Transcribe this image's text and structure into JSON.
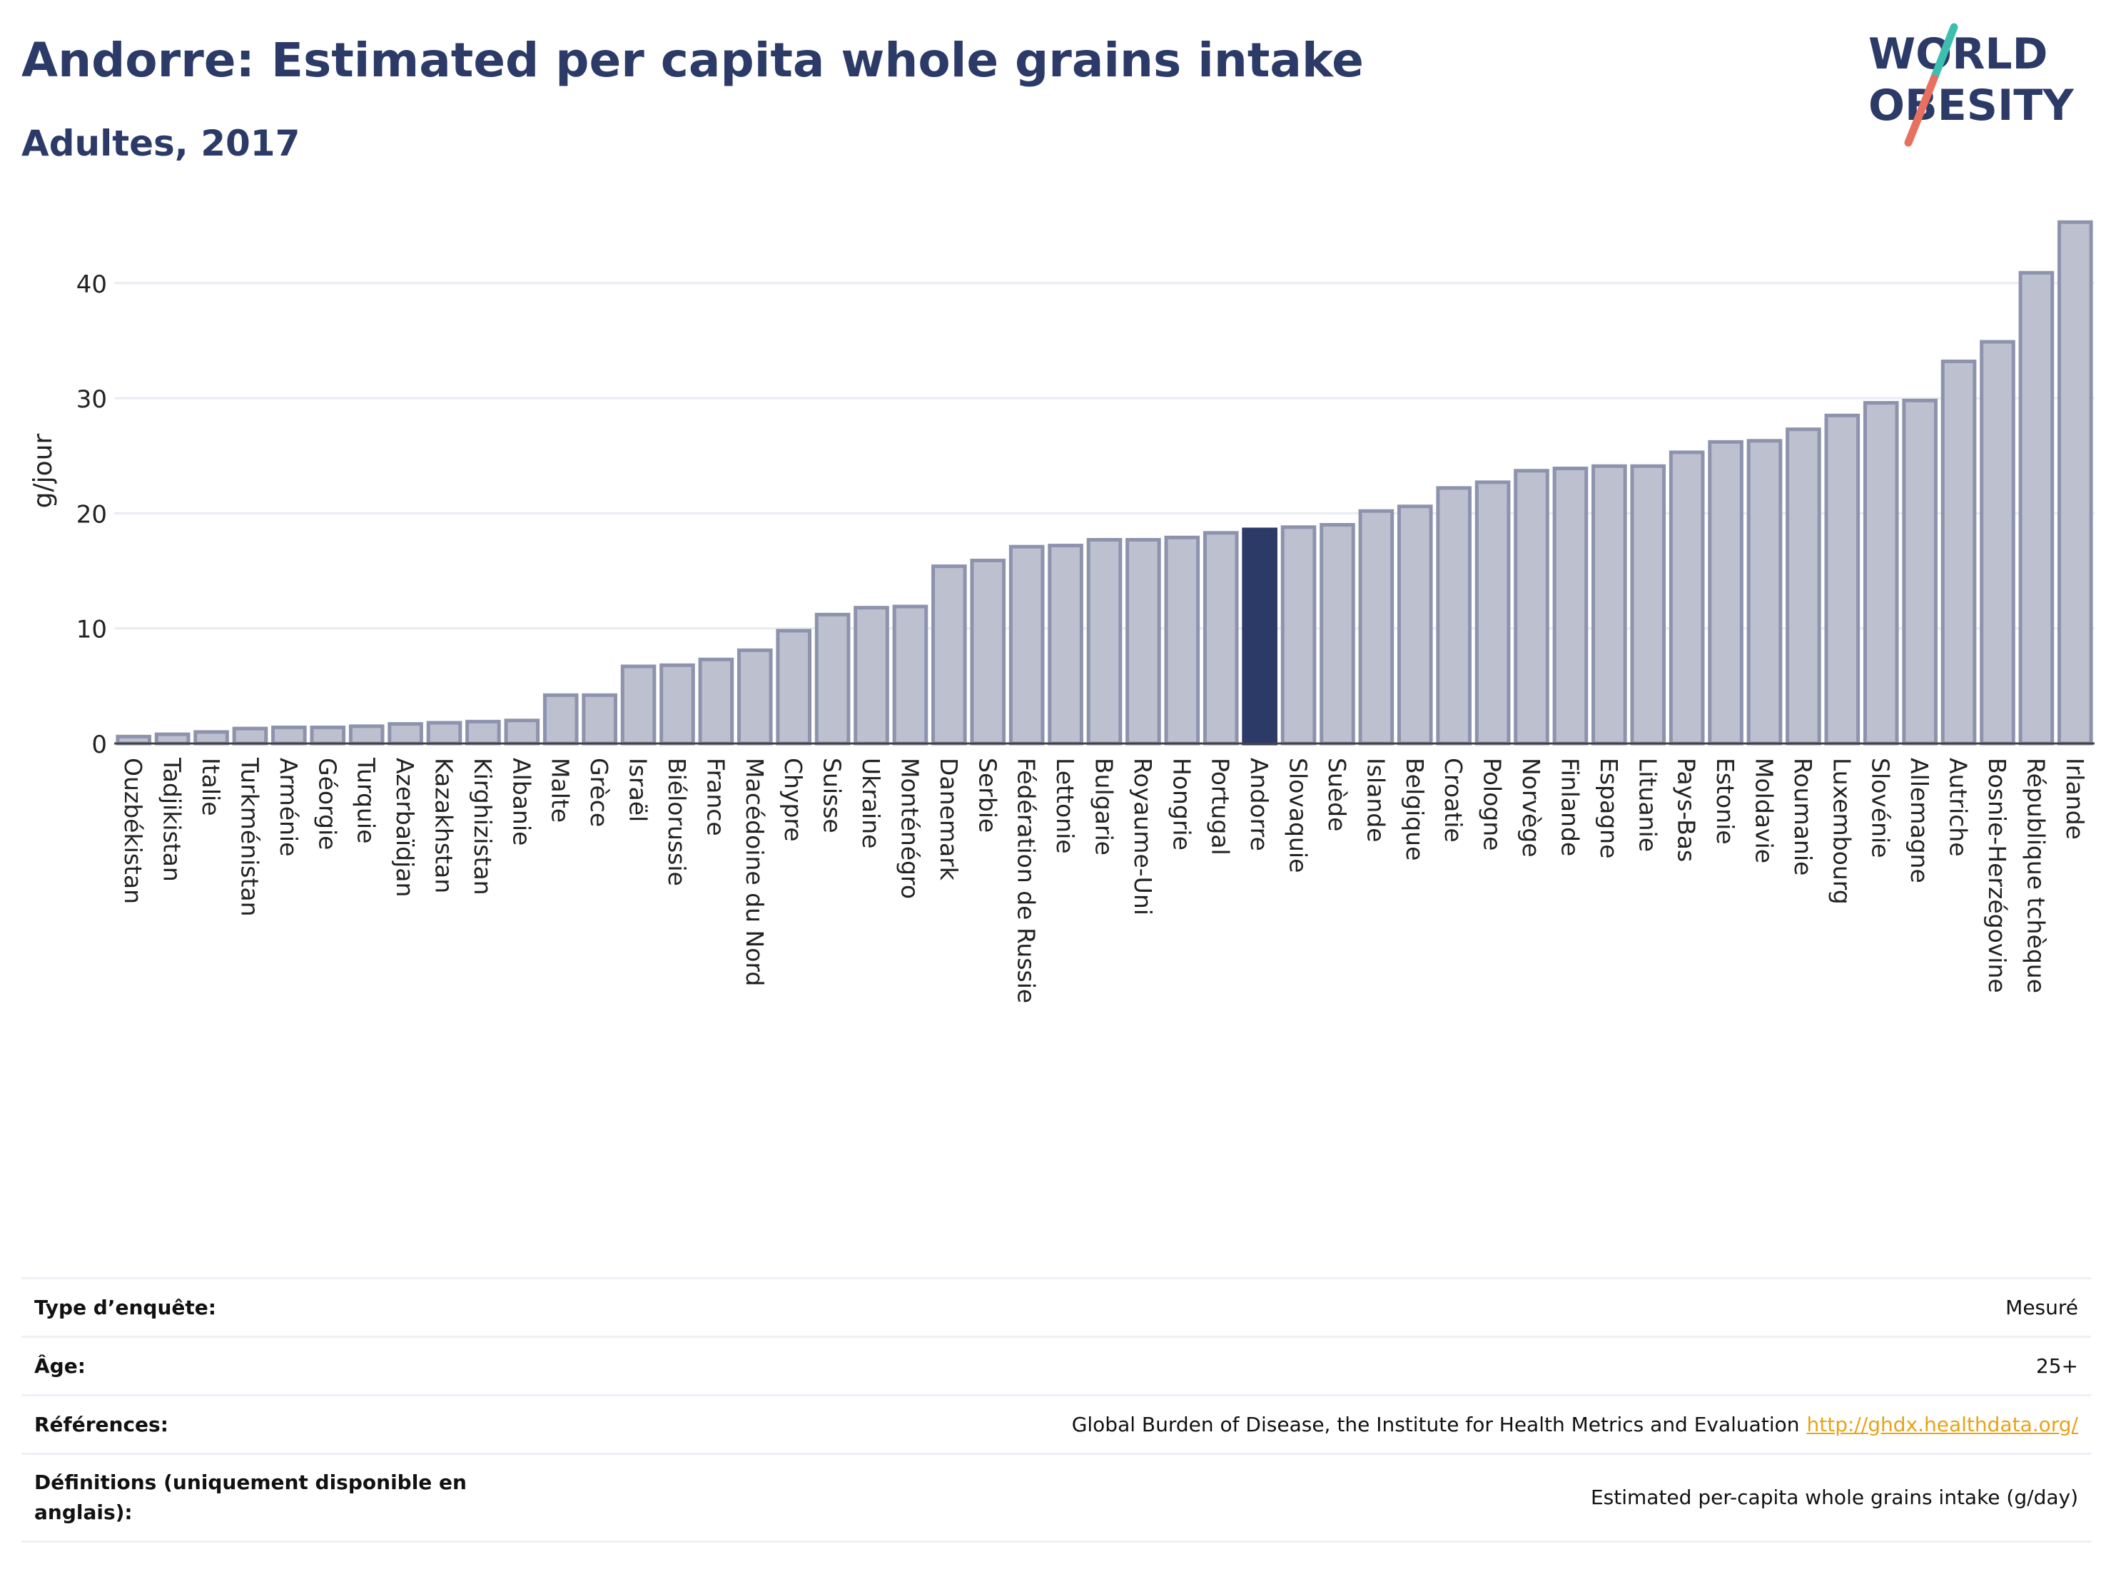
{
  "header": {
    "title": "Andorre: Estimated per capita whole grains intake",
    "subtitle": "Adultes, 2017",
    "logo_line1": "WORLD",
    "logo_line2": "OBESITY"
  },
  "colors": {
    "title": "#2b3a67",
    "bar_fill": "#bcc0cf",
    "bar_stroke": "#8e93ad",
    "highlight": "#2b3a67",
    "grid": "#eaecf3",
    "logo_teal": "#3dbfb0",
    "logo_coral": "#e8705f",
    "link": "#e8a318"
  },
  "chart_data": {
    "type": "bar",
    "ylabel": "g/jour",
    "ylim": [
      0,
      46
    ],
    "yticks": [
      0,
      10,
      20,
      30,
      40
    ],
    "highlight": "Andorre",
    "categories": [
      "Ouzbékistan",
      "Tadjikistan",
      "Italie",
      "Turkménistan",
      "Arménie",
      "Géorgie",
      "Turquie",
      "Azerbaïdjan",
      "Kazakhstan",
      "Kirghizistan",
      "Albanie",
      "Malte",
      "Grèce",
      "Israël",
      "Biélorussie",
      "France",
      "Macédoine du Nord",
      "Chypre",
      "Suisse",
      "Ukraine",
      "Monténégro",
      "Danemark",
      "Serbie",
      "Fédération de Russie",
      "Lettonie",
      "Bulgarie",
      "Royaume-Uni",
      "Hongrie",
      "Portugal",
      "Andorre",
      "Slovaquie",
      "Suède",
      "Islande",
      "Belgique",
      "Croatie",
      "Pologne",
      "Norvège",
      "Finlande",
      "Espagne",
      "Lituanie",
      "Pays-Bas",
      "Estonie",
      "Moldavie",
      "Roumanie",
      "Luxembourg",
      "Slovénie",
      "Allemagne",
      "Autriche",
      "Bosnie-Herzégovine",
      "République tchèque",
      "Irlande"
    ],
    "values": [
      0.6,
      0.8,
      1.0,
      1.3,
      1.4,
      1.4,
      1.5,
      1.7,
      1.8,
      1.9,
      2.0,
      4.2,
      4.2,
      6.7,
      6.8,
      7.3,
      8.1,
      9.8,
      11.2,
      11.8,
      11.9,
      15.4,
      15.9,
      17.1,
      17.2,
      17.7,
      17.7,
      17.9,
      18.3,
      18.6,
      18.8,
      19.0,
      20.2,
      20.6,
      22.2,
      22.7,
      23.7,
      23.9,
      24.1,
      24.1,
      25.3,
      26.2,
      26.3,
      27.3,
      28.5,
      29.6,
      29.8,
      33.2,
      34.9,
      40.9,
      45.3
    ]
  },
  "info": [
    {
      "label": "Type d’enquête:",
      "value": "Mesuré"
    },
    {
      "label": "Âge:",
      "value": "25+"
    },
    {
      "label": "Références:",
      "value": "Global Burden of Disease, the Institute for Health Metrics and Evaluation",
      "link": "http://ghdx.healthdata.org/"
    },
    {
      "label": "Définitions (uniquement disponible en anglais):",
      "value": "Estimated per-capita whole grains intake (g/day)"
    }
  ]
}
